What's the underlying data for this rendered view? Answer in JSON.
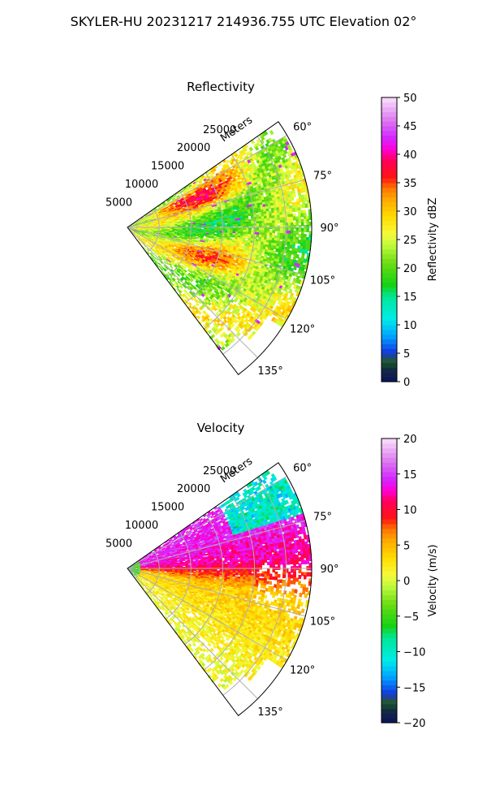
{
  "figure": {
    "title": "SKYLER-HU  20231217  214936.755 UTC Elevation 02°"
  },
  "chart_data": [
    {
      "type": "heatmap",
      "subtype": "polar-sector (radar PPI)",
      "title": "Reflectivity",
      "radial_axis_label": "Meters",
      "radial_ticks": [
        "5000",
        "10000",
        "15000",
        "20000",
        "25000"
      ],
      "radial_range": [
        0,
        29000
      ],
      "angle_ticks": [
        "60°",
        "75°",
        "90°",
        "105°",
        "120°",
        "135°"
      ],
      "angle_range_deg": [
        55,
        143
      ],
      "grid": true,
      "colorbar": {
        "label": "Reflectivity dBZ",
        "range": [
          0,
          50
        ],
        "ticks": [
          "0",
          "5",
          "10",
          "15",
          "20",
          "25",
          "30",
          "35",
          "40",
          "45",
          "50"
        ]
      },
      "field_summary": "Mostly 20–30 dBZ across the sector, with bands of 33–38 dBZ near 63–75° and 100–118°, and isolated cells above 40 dBZ"
    },
    {
      "type": "heatmap",
      "subtype": "polar-sector (radar PPI)",
      "title": "Velocity",
      "radial_axis_label": "Meters",
      "radial_ticks": [
        "5000",
        "10000",
        "15000",
        "20000",
        "25000"
      ],
      "radial_range": [
        0,
        29000
      ],
      "angle_ticks": [
        "60°",
        "75°",
        "90°",
        "105°",
        "120°",
        "135°"
      ],
      "angle_range_deg": [
        55,
        143
      ],
      "grid": true,
      "colorbar": {
        "label": "Velocity (m/s)",
        "range": [
          -20,
          20
        ],
        "ticks": [
          "−20",
          "−15",
          "−10",
          "−5",
          "0",
          "5",
          "10",
          "15",
          "20"
        ]
      },
      "field_summary": "About +13 to +15 m/s on the north side (65–85°), about +8 to +11 m/s near 85–100°, and 0 to +4 m/s on the south side (100–140°); −10 m/s returns at long range near 58–72°"
    }
  ]
}
